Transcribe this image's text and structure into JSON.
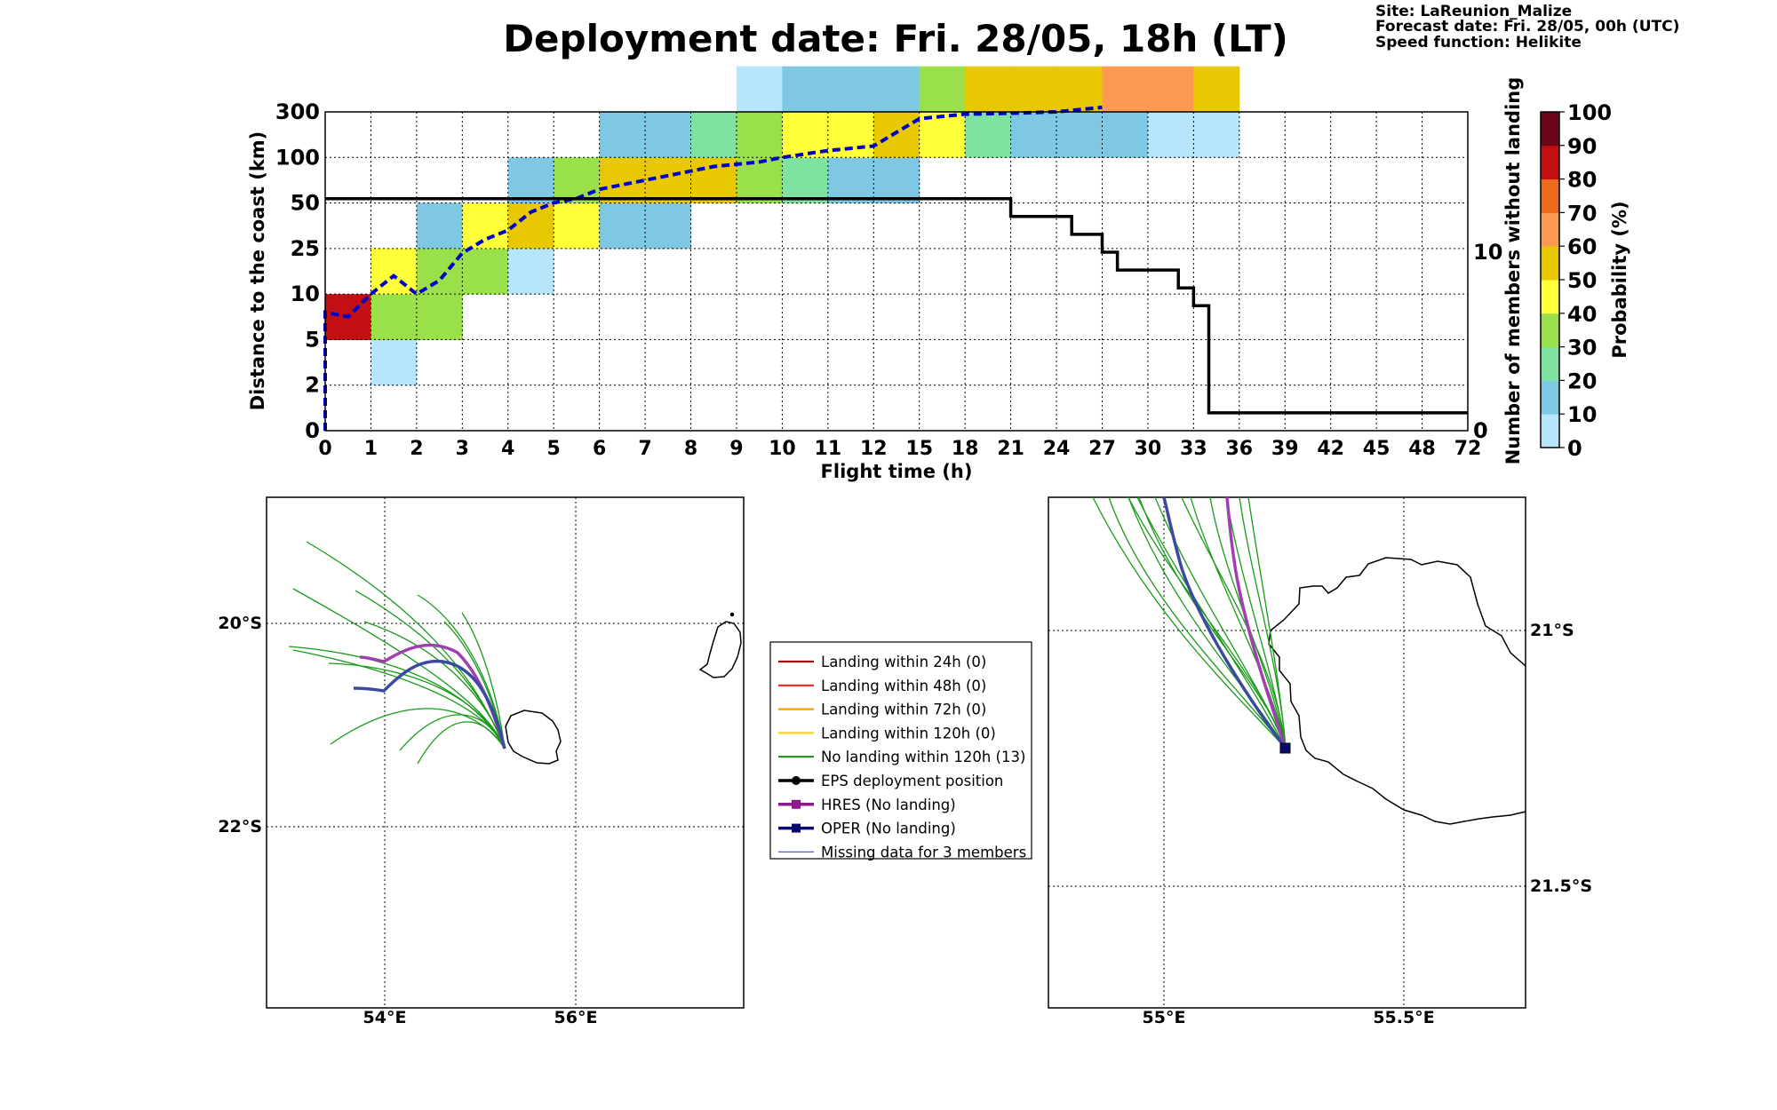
{
  "header": {
    "title": "Deployment date: Fri. 28/05, 18h (LT)",
    "site": "Site: LaReunion_Malize",
    "forecast_date": "Forecast date: Fri. 28/05, 00h (UTC)",
    "speed_function": "Speed function: Helikite"
  },
  "chart_data": [
    {
      "type": "heatmap",
      "xlabel": "Flight time (h)",
      "ylabel": "Distance to the coast (km)",
      "y2label": "Number of members without landing",
      "x_ticks": [
        "0",
        "1",
        "2",
        "3",
        "4",
        "5",
        "6",
        "7",
        "8",
        "9",
        "10",
        "11",
        "12",
        "15",
        "18",
        "21",
        "24",
        "27",
        "30",
        "33",
        "36",
        "39",
        "42",
        "45",
        "48",
        "72"
      ],
      "y_ticks": [
        "0",
        "2",
        "5",
        "10",
        "25",
        "50",
        "100",
        "300"
      ],
      "y2_ticks": [
        "0",
        "10"
      ],
      "grid": true,
      "colorbar": {
        "label": "Probability (%)",
        "ticks": [
          "0",
          "10",
          "20",
          "30",
          "40",
          "50",
          "60",
          "70",
          "80",
          "90",
          "100"
        ],
        "colors": [
          "#b7e6fb",
          "#7ec8e3",
          "#7ee3a1",
          "#99e04a",
          "#ffff3a",
          "#e8c800",
          "#fd9a52",
          "#f06a1e",
          "#c40f12",
          "#6e0418"
        ]
      },
      "cells": [
        {
          "x": 0,
          "y": 2,
          "p": 85
        },
        {
          "x": 1,
          "y": 1,
          "p": 2
        },
        {
          "x": 1,
          "y": 2,
          "p": 32
        },
        {
          "x": 1,
          "y": 3,
          "p": 45
        },
        {
          "x": 2,
          "y": 2,
          "p": 32
        },
        {
          "x": 2,
          "y": 3,
          "p": 32
        },
        {
          "x": 2,
          "y": 4,
          "p": 15
        },
        {
          "x": 3,
          "y": 3,
          "p": 32
        },
        {
          "x": 3,
          "y": 4,
          "p": 45
        },
        {
          "x": 4,
          "y": 3,
          "p": 2
        },
        {
          "x": 4,
          "y": 4,
          "p": 55
        },
        {
          "x": 4,
          "y": 5,
          "p": 15
        },
        {
          "x": 5,
          "y": 4,
          "p": 45
        },
        {
          "x": 5,
          "y": 5,
          "p": 32
        },
        {
          "x": 6,
          "y": 4,
          "p": 15
        },
        {
          "x": 6,
          "y": 5,
          "p": 55
        },
        {
          "x": 6,
          "y": 6,
          "p": 15
        },
        {
          "x": 7,
          "y": 4,
          "p": 15
        },
        {
          "x": 7,
          "y": 5,
          "p": 55
        },
        {
          "x": 7,
          "y": 6,
          "p": 15
        },
        {
          "x": 8,
          "y": 5,
          "p": 55
        },
        {
          "x": 8,
          "y": 6,
          "p": 25
        },
        {
          "x": 9,
          "y": 5,
          "p": 32
        },
        {
          "x": 9,
          "y": 6,
          "p": 32
        },
        {
          "x": 9,
          "y": 7,
          "p": 2
        },
        {
          "x": 10,
          "y": 5,
          "p": 25
        },
        {
          "x": 10,
          "y": 6,
          "p": 45
        },
        {
          "x": 10,
          "y": 7,
          "p": 15
        },
        {
          "x": 11,
          "y": 5,
          "p": 15
        },
        {
          "x": 11,
          "y": 6,
          "p": 45
        },
        {
          "x": 11,
          "y": 7,
          "p": 15
        },
        {
          "x": 12,
          "y": 5,
          "p": 15
        },
        {
          "x": 12,
          "y": 6,
          "p": 55
        },
        {
          "x": 12,
          "y": 7,
          "p": 15
        },
        {
          "x": 13,
          "y": 6,
          "p": 45
        },
        {
          "x": 13,
          "y": 7,
          "p": 32
        },
        {
          "x": 14,
          "y": 6,
          "p": 25
        },
        {
          "x": 14,
          "y": 7,
          "p": 55
        },
        {
          "x": 15,
          "y": 6,
          "p": 15
        },
        {
          "x": 15,
          "y": 7,
          "p": 55
        },
        {
          "x": 16,
          "y": 6,
          "p": 15
        },
        {
          "x": 16,
          "y": 7,
          "p": 55
        },
        {
          "x": 17,
          "y": 6,
          "p": 15
        },
        {
          "x": 17,
          "y": 7,
          "p": 65
        },
        {
          "x": 18,
          "y": 6,
          "p": 2
        },
        {
          "x": 18,
          "y": 7,
          "p": 65
        },
        {
          "x": 19,
          "y": 6,
          "p": 2
        },
        {
          "x": 19,
          "y": 7,
          "p": 55
        }
      ],
      "members_without_landing": {
        "name": "Number of members without landing",
        "points": [
          [
            0,
            13
          ],
          [
            21,
            13
          ],
          [
            21,
            12
          ],
          [
            25,
            12
          ],
          [
            25,
            11
          ],
          [
            27,
            11
          ],
          [
            27,
            10
          ],
          [
            28,
            10
          ],
          [
            28,
            9
          ],
          [
            30,
            9
          ],
          [
            30,
            9
          ],
          [
            32,
            9
          ],
          [
            32,
            8
          ],
          [
            33,
            8
          ],
          [
            33,
            7
          ],
          [
            34,
            7
          ],
          [
            34,
            1
          ],
          [
            72,
            1
          ]
        ]
      },
      "median_distance": {
        "points": [
          [
            0,
            0
          ],
          [
            0,
            2.6
          ],
          [
            0.5,
            2.5
          ],
          [
            1,
            3.0
          ],
          [
            1.5,
            3.4
          ],
          [
            2,
            3.0
          ],
          [
            2.5,
            3.3
          ],
          [
            3,
            3.9
          ],
          [
            3.5,
            4.2
          ],
          [
            4,
            4.4
          ],
          [
            4.5,
            4.8
          ],
          [
            5,
            5.0
          ],
          [
            5.5,
            5.1
          ],
          [
            6,
            5.3
          ],
          [
            6.5,
            5.4
          ],
          [
            7,
            5.5
          ],
          [
            7.5,
            5.6
          ],
          [
            8,
            5.7
          ],
          [
            8.5,
            5.8
          ],
          [
            9,
            5.85
          ],
          [
            9.5,
            5.9
          ],
          [
            10,
            6.0
          ],
          [
            11,
            6.15
          ],
          [
            12,
            6.25
          ],
          [
            15,
            6.85
          ],
          [
            18,
            6.95
          ],
          [
            21,
            6.97
          ],
          [
            24,
            7.0
          ],
          [
            27,
            7.1
          ]
        ]
      }
    },
    {
      "type": "map",
      "lon_ticks": [
        "54°E",
        "56°E"
      ],
      "lat_ticks": [
        "20°S",
        "22°S"
      ]
    },
    {
      "type": "map",
      "lon_ticks": [
        "55°E",
        "55.5°E"
      ],
      "lat_ticks": [
        "21°S",
        "21.5°S"
      ]
    }
  ],
  "legend": {
    "items": [
      {
        "label": "Landing within 24h (0)",
        "color": "#a01010",
        "kind": "line"
      },
      {
        "label": "Landing within 48h (0)",
        "color": "#ff2020",
        "kind": "line"
      },
      {
        "label": "Landing within 72h (0)",
        "color": "#ff9a10",
        "kind": "line"
      },
      {
        "label": "Landing within 120h (0)",
        "color": "#ffd21e",
        "kind": "line"
      },
      {
        "label": "No landing within 120h (13)",
        "color": "#1a8f1a",
        "kind": "line"
      },
      {
        "label": "EPS deployment position",
        "color": "#000000",
        "kind": "marker-circle"
      },
      {
        "label": "HRES (No landing)",
        "color": "#8f1a8f",
        "kind": "marker-square"
      },
      {
        "label": "OPER (No landing)",
        "color": "#0a0a6e",
        "kind": "marker-square"
      },
      {
        "label": "Missing data for 3 members",
        "color": "#5050ff",
        "kind": "thin"
      }
    ]
  }
}
